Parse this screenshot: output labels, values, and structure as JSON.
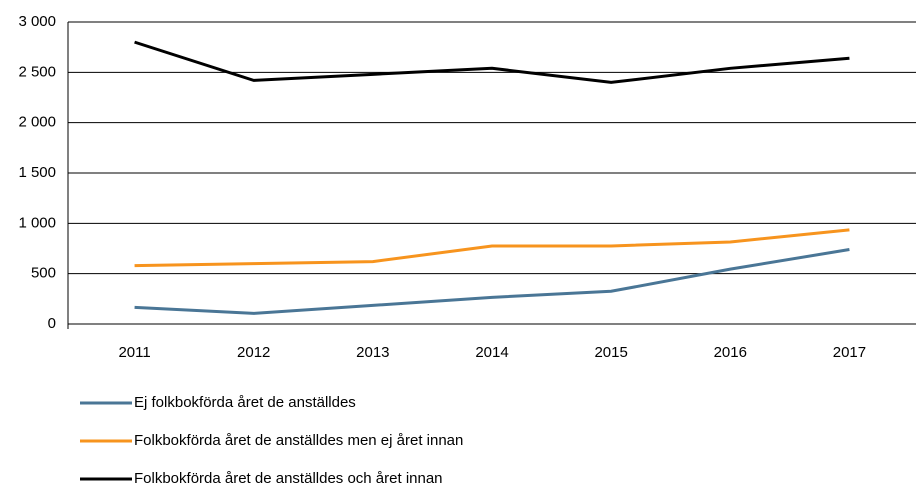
{
  "chart_data": {
    "type": "line",
    "categories": [
      "2011",
      "2012",
      "2013",
      "2014",
      "2015",
      "2016",
      "2017"
    ],
    "series": [
      {
        "name": "Ej folkbokförda året de anställdes",
        "color": "#4a7696",
        "values": [
          165,
          105,
          185,
          265,
          325,
          545,
          740
        ]
      },
      {
        "name": "Folkbokförda året de anställdes men ej året innan",
        "color": "#f7941e",
        "values": [
          580,
          600,
          620,
          775,
          775,
          815,
          935
        ]
      },
      {
        "name": "Folkbokförda året de anställdes och året innan",
        "color": "#000000",
        "values": [
          2800,
          2420,
          2480,
          2540,
          2400,
          2540,
          2640
        ]
      }
    ],
    "ylim": [
      0,
      3000
    ],
    "yticks": [
      0,
      500,
      {
        "value": 1000,
        "label": "1 000"
      },
      {
        "value": 1500,
        "label": "1 500"
      },
      {
        "value": 2000,
        "label": "2 000"
      },
      {
        "value": 2500,
        "label": "2 500"
      },
      {
        "value": 3000,
        "label": "3 000"
      }
    ],
    "grid": true,
    "legend": "bottom"
  }
}
